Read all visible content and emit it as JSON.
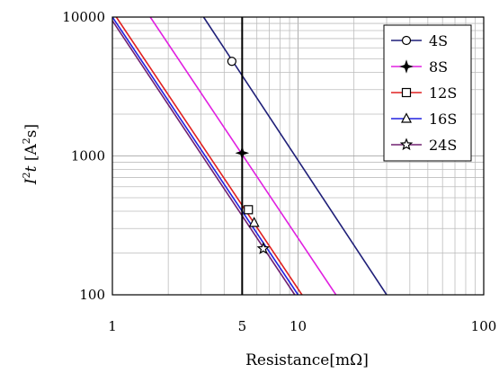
{
  "chart_data": {
    "type": "line",
    "xlabel": "Resistance[mΩ]",
    "ylabel_parts": {
      "i": "I",
      "sup1": "2",
      "t": "t",
      "open": " [A",
      "sup2": "2",
      "close": "s]"
    },
    "x_scale": "log",
    "y_scale": "log",
    "xlim": [
      1,
      100
    ],
    "ylim": [
      100,
      10000
    ],
    "x_tick_labels": [
      {
        "value": 1,
        "label": "1"
      },
      {
        "value": 5,
        "label": "5"
      },
      {
        "value": 10,
        "label": "10"
      },
      {
        "value": 100,
        "label": "100"
      }
    ],
    "y_tick_labels": [
      {
        "value": 100,
        "label": "100"
      },
      {
        "value": 1000,
        "label": "1000"
      },
      {
        "value": 10000,
        "label": "10000"
      }
    ],
    "grid": true,
    "legend_placement": "top-right",
    "vertical_reference_line": {
      "x": 5,
      "color": "#000000"
    },
    "series": [
      {
        "name": "4S",
        "color": "#1f1f78",
        "marker": "circle",
        "line": [
          [
            3.1,
            10000
          ],
          [
            30,
            100
          ]
        ],
        "marker_point": [
          4.4,
          4800
        ]
      },
      {
        "name": "8S",
        "color": "#e020e0",
        "marker": "plus4",
        "line": [
          [
            1.6,
            10000
          ],
          [
            16,
            100
          ]
        ],
        "marker_point": [
          5.0,
          1050
        ]
      },
      {
        "name": "12S",
        "color": "#e02020",
        "marker": "square",
        "line": [
          [
            1.05,
            10000
          ],
          [
            10.5,
            100
          ]
        ],
        "marker_point": [
          5.4,
          410
        ]
      },
      {
        "name": "16S",
        "color": "#2020e0",
        "marker": "triangle",
        "line": [
          [
            1.0,
            10000
          ],
          [
            10.0,
            100
          ]
        ],
        "marker_point": [
          5.8,
          330
        ]
      },
      {
        "name": "24S",
        "color": "#702070",
        "marker": "star",
        "line": [
          [
            0.97,
            10000
          ],
          [
            9.6,
            100
          ]
        ],
        "marker_point": [
          6.5,
          215
        ]
      }
    ]
  }
}
